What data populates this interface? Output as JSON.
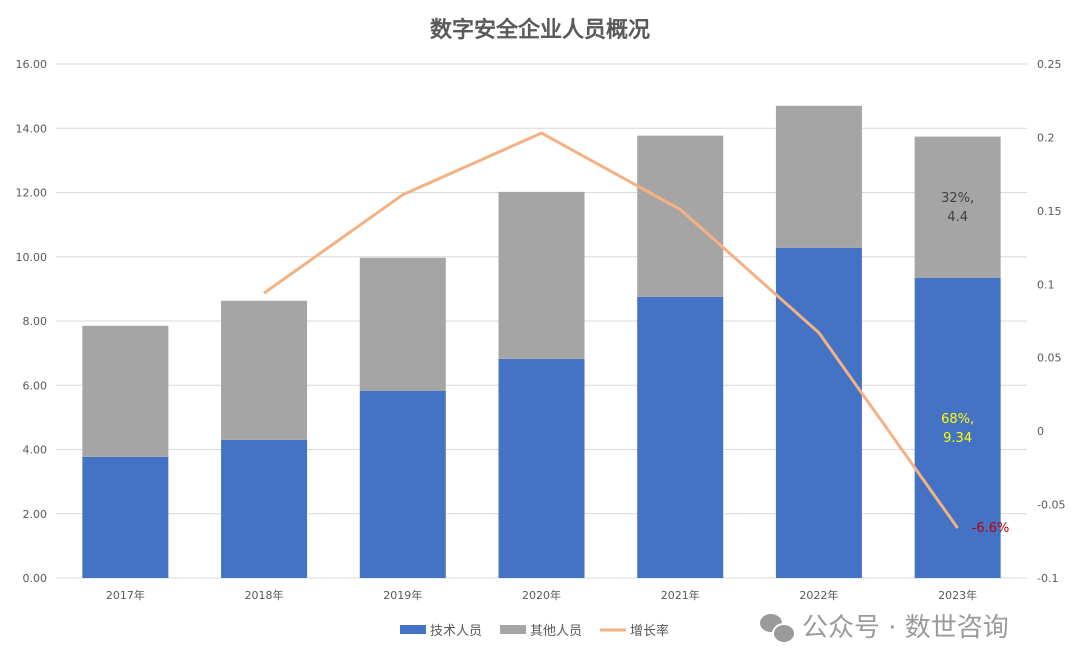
{
  "chart_data": {
    "type": "bar",
    "stacked": true,
    "title": "数字安全企业人员概况",
    "categories": [
      "2017年",
      "2018年",
      "2019年",
      "2020年",
      "2021年",
      "2022年",
      "2023年"
    ],
    "series": [
      {
        "name": "技术人员",
        "type": "bar",
        "axis": "left",
        "color": "#4472C4",
        "values": [
          3.77,
          4.3,
          5.83,
          6.82,
          8.75,
          10.28,
          9.34
        ]
      },
      {
        "name": "其他人员",
        "type": "bar",
        "axis": "left",
        "color": "#A5A5A5",
        "values": [
          4.08,
          4.33,
          4.14,
          5.2,
          5.02,
          4.42,
          4.4
        ]
      },
      {
        "name": "增长率",
        "type": "line",
        "axis": "right",
        "color": "#F4B183",
        "values": [
          null,
          0.094,
          0.161,
          0.203,
          0.151,
          0.067,
          -0.066
        ]
      }
    ],
    "left_axis": {
      "min": 0,
      "max": 16,
      "step": 2,
      "ticks": [
        "0.00",
        "2.00",
        "4.00",
        "6.00",
        "8.00",
        "10.00",
        "12.00",
        "14.00",
        "16.00"
      ]
    },
    "right_axis": {
      "min": -0.1,
      "max": 0.25,
      "step": 0.05,
      "ticks": [
        "-0.1",
        "-0.05",
        "0",
        "0.05",
        "0.1",
        "0.15",
        "0.2",
        "0.25"
      ]
    },
    "grid": true,
    "legend_position": "bottom",
    "annotations": [
      {
        "text_line1": "32%,",
        "text_line2": "4.4",
        "category": "2023年",
        "series": "其他人员",
        "color": "#404040"
      },
      {
        "text_line1": "68%,",
        "text_line2": "9.34",
        "category": "2023年",
        "series": "技术人员",
        "color": "#FFFF00"
      },
      {
        "text_line1": "-6.6%",
        "category": "2023年",
        "series": "增长率",
        "color": "#C00000"
      }
    ]
  },
  "watermark": "公众号 · 数世咨询"
}
